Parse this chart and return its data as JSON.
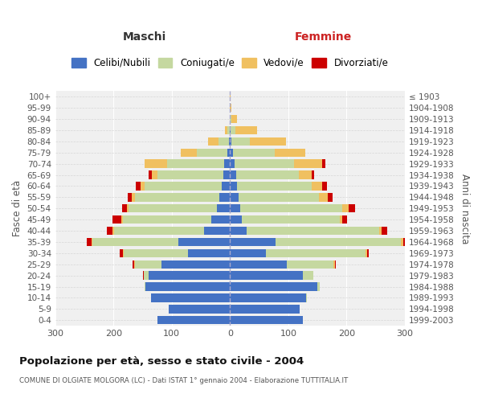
{
  "age_groups": [
    "0-4",
    "5-9",
    "10-14",
    "15-19",
    "20-24",
    "25-29",
    "30-34",
    "35-39",
    "40-44",
    "45-49",
    "50-54",
    "55-59",
    "60-64",
    "65-69",
    "70-74",
    "75-79",
    "80-84",
    "85-89",
    "90-94",
    "95-99",
    "100+"
  ],
  "birth_years": [
    "1999-2003",
    "1994-1998",
    "1989-1993",
    "1984-1988",
    "1979-1983",
    "1974-1978",
    "1969-1973",
    "1964-1968",
    "1959-1963",
    "1954-1958",
    "1949-1953",
    "1944-1948",
    "1939-1943",
    "1934-1938",
    "1929-1933",
    "1924-1928",
    "1919-1923",
    "1914-1918",
    "1909-1913",
    "1904-1908",
    "≤ 1903"
  ],
  "males": {
    "celibi": [
      125,
      105,
      135,
      145,
      140,
      118,
      72,
      88,
      44,
      32,
      22,
      18,
      14,
      12,
      10,
      5,
      2,
      1,
      0,
      0,
      0
    ],
    "coniugati": [
      0,
      0,
      0,
      2,
      8,
      45,
      110,
      148,
      155,
      152,
      152,
      145,
      132,
      112,
      98,
      52,
      18,
      4,
      1,
      0,
      0
    ],
    "vedovi": [
      0,
      0,
      0,
      0,
      0,
      2,
      2,
      2,
      2,
      2,
      3,
      5,
      8,
      10,
      38,
      28,
      18,
      4,
      0,
      0,
      0
    ],
    "divorziati": [
      0,
      0,
      0,
      0,
      1,
      2,
      5,
      8,
      10,
      15,
      8,
      8,
      8,
      5,
      0,
      0,
      0,
      0,
      0,
      0,
      0
    ]
  },
  "females": {
    "nubili": [
      125,
      120,
      130,
      150,
      125,
      98,
      62,
      78,
      28,
      20,
      18,
      15,
      12,
      10,
      8,
      5,
      2,
      1,
      0,
      0,
      0
    ],
    "coniugate": [
      0,
      0,
      2,
      4,
      18,
      80,
      170,
      215,
      228,
      168,
      175,
      138,
      128,
      108,
      102,
      72,
      32,
      8,
      2,
      0,
      0
    ],
    "vedove": [
      0,
      0,
      0,
      0,
      0,
      2,
      3,
      4,
      4,
      5,
      10,
      15,
      18,
      22,
      48,
      52,
      62,
      38,
      10,
      2,
      1
    ],
    "divorziate": [
      0,
      0,
      0,
      0,
      0,
      2,
      3,
      8,
      10,
      8,
      12,
      8,
      8,
      5,
      5,
      0,
      0,
      0,
      0,
      0,
      0
    ]
  },
  "colors": {
    "celibi": "#4472c4",
    "coniugati": "#c5d8a0",
    "vedovi": "#f0c060",
    "divorziati": "#cc0000"
  },
  "title": "Popolazione per età, sesso e stato civile - 2004",
  "subtitle": "COMUNE DI OLGIATE MOLGORA (LC) - Dati ISTAT 1° gennaio 2004 - Elaborazione TUTTITALIA.IT",
  "xlabel_left": "Maschi",
  "xlabel_right": "Femmine",
  "ylabel_left": "Fasce di età",
  "ylabel_right": "Anni di nascita",
  "xlim": 300,
  "legend_labels": [
    "Celibi/Nubili",
    "Coniugati/e",
    "Vedovi/e",
    "Divorziati/e"
  ],
  "bg_color": "#ffffff",
  "plot_bg": "#f0f0f0",
  "grid_color": "#cccccc"
}
